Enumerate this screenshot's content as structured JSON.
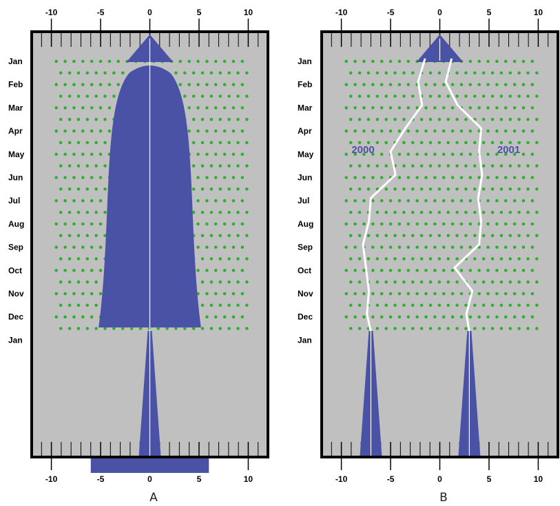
{
  "colors": {
    "panel_bg": "#c0c0c0",
    "shape": "#4a52a6",
    "dot": "#2eb02e",
    "path": "#ffffff",
    "frame": "#000000"
  },
  "x_axis": {
    "range": [
      -12,
      12
    ],
    "ticks": [
      -10,
      -5,
      0,
      5,
      10
    ],
    "tick_labels": [
      "-10",
      "-5",
      "0",
      "5",
      "10"
    ]
  },
  "months": [
    "Jan",
    "Feb",
    "Mar",
    "Apr",
    "May",
    "Jun",
    "Jul",
    "Aug",
    "Sep",
    "Oct",
    "Nov",
    "Dec",
    "Jan"
  ],
  "panels": [
    {
      "id": "A",
      "label": "A",
      "bottom_bar_range": [
        -6,
        6
      ]
    },
    {
      "id": "B",
      "label": "B",
      "series": [
        {
          "name": "2000",
          "values": [
            -1.5,
            -2.2,
            -1.8,
            -3.5,
            -5,
            -4.5,
            -7,
            -7.2,
            -7.8,
            -7.5,
            -7.2,
            -7.4,
            -7
          ]
        },
        {
          "name": "2001",
          "values": [
            1.2,
            0.6,
            1.8,
            4.2,
            4.0,
            4.3,
            3.9,
            4.2,
            4.0,
            1.5,
            3.3,
            2.7,
            3.0
          ]
        }
      ]
    }
  ]
}
